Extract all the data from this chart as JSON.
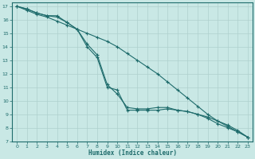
{
  "xlabel": "Humidex (Indice chaleur)",
  "background_color": "#c9e8e5",
  "grid_color": "#aed0cd",
  "line_color": "#1e6b6b",
  "xlim": [
    -0.5,
    23.5
  ],
  "ylim": [
    7,
    17.3
  ],
  "xticks": [
    0,
    1,
    2,
    3,
    4,
    5,
    6,
    7,
    8,
    9,
    10,
    11,
    12,
    13,
    14,
    15,
    16,
    17,
    18,
    19,
    20,
    21,
    22,
    23
  ],
  "yticks": [
    7,
    8,
    9,
    10,
    11,
    12,
    13,
    14,
    15,
    16,
    17
  ],
  "line1_x": [
    0,
    1,
    2,
    3,
    4,
    5,
    6,
    7,
    8,
    9,
    10,
    11,
    12,
    13,
    14,
    15,
    16,
    17,
    18,
    19,
    20,
    21,
    22,
    23
  ],
  "line1_y": [
    17,
    16.7,
    16.4,
    16.2,
    15.9,
    15.6,
    15.3,
    15.0,
    14.7,
    14.4,
    14.0,
    13.5,
    13.0,
    12.5,
    12.0,
    11.4,
    10.8,
    10.2,
    9.6,
    9.0,
    8.5,
    8.1,
    7.7,
    7.3
  ],
  "line2_x": [
    0,
    1,
    2,
    3,
    4,
    5,
    6,
    7,
    8,
    9,
    10,
    11,
    12,
    13,
    14,
    15,
    16,
    17,
    18,
    19,
    20,
    21,
    22,
    23
  ],
  "line2_y": [
    17,
    16.8,
    16.5,
    16.3,
    16.3,
    15.8,
    15.3,
    14.0,
    13.2,
    11.0,
    10.8,
    9.3,
    9.3,
    9.3,
    9.3,
    9.4,
    9.3,
    9.2,
    9.0,
    8.8,
    8.5,
    8.2,
    7.8,
    7.3
  ],
  "line3_x": [
    0,
    1,
    2,
    3,
    4,
    5,
    6,
    7,
    8,
    9,
    10,
    11,
    12,
    13,
    14,
    15,
    16,
    17,
    18,
    19,
    20,
    21,
    22,
    23
  ],
  "line3_y": [
    17,
    16.8,
    16.5,
    16.3,
    16.2,
    15.8,
    15.3,
    14.2,
    13.4,
    11.2,
    10.5,
    9.5,
    9.4,
    9.4,
    9.5,
    9.5,
    9.3,
    9.2,
    9.0,
    8.7,
    8.3,
    8.0,
    7.7,
    7.3
  ]
}
